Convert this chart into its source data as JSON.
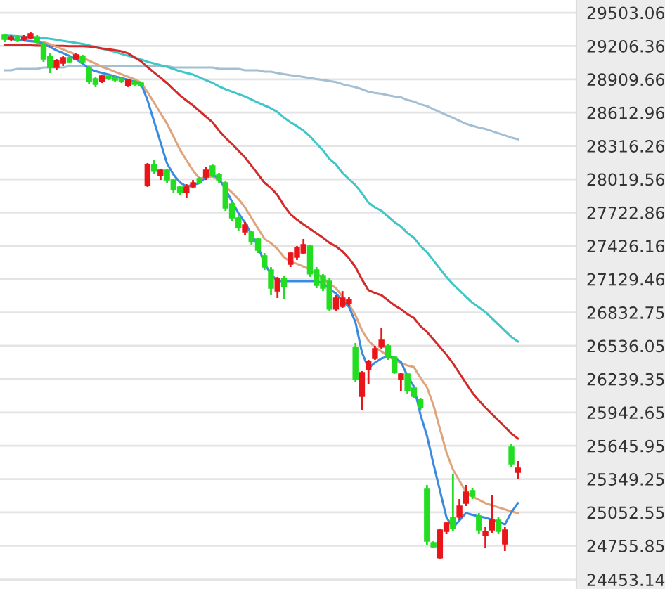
{
  "chart_data": {
    "type": "candlestick",
    "categories": [
      null,
      null,
      null,
      null,
      null,
      null,
      null,
      null,
      null,
      null,
      null,
      null,
      null,
      null,
      null,
      null,
      null,
      null,
      null,
      null,
      null,
      null,
      null,
      null,
      null,
      null,
      null,
      null,
      null,
      null,
      null,
      null,
      null,
      null,
      null,
      null,
      null,
      null,
      null,
      null,
      null,
      null,
      null,
      null,
      null,
      null,
      null,
      null,
      null,
      null,
      null,
      null,
      null,
      null,
      null,
      null,
      null,
      null,
      null,
      null,
      null,
      null,
      null,
      null,
      null,
      null,
      null,
      null,
      null,
      null,
      null,
      null,
      null,
      null,
      null,
      null,
      null,
      null,
      null,
      null
    ],
    "ohlc": [
      [
        29303,
        29316,
        29240,
        29265
      ],
      [
        29265,
        29303,
        29253,
        29290
      ],
      [
        29290,
        29303,
        29240,
        29253
      ],
      [
        29265,
        29303,
        29253,
        29290
      ],
      [
        29278,
        29328,
        29265,
        29316
      ],
      [
        29290,
        29303,
        29228,
        29240
      ],
      [
        29228,
        29240,
        29065,
        29090
      ],
      [
        29115,
        29140,
        28965,
        29015
      ],
      [
        29015,
        29090,
        28990,
        29078
      ],
      [
        29053,
        29115,
        29028,
        29103
      ],
      [
        29103,
        29115,
        29053,
        29065
      ],
      [
        29090,
        29140,
        29078,
        29128
      ],
      [
        29115,
        29128,
        29053,
        29065
      ],
      [
        29015,
        29028,
        28865,
        28890
      ],
      [
        28915,
        28927,
        28840,
        28865
      ],
      [
        28890,
        28952,
        28877,
        28940
      ],
      [
        28940,
        28952,
        28902,
        28915
      ],
      [
        28927,
        28940,
        28890,
        28902
      ],
      [
        28915,
        28927,
        28877,
        28890
      ],
      [
        28852,
        28915,
        28840,
        28902
      ],
      [
        28890,
        28902,
        28852,
        28865
      ],
      [
        28877,
        28890,
        28840,
        28852
      ],
      [
        27963,
        28164,
        27951,
        28151
      ],
      [
        28151,
        28189,
        28064,
        28089
      ],
      [
        28051,
        28114,
        28013,
        28101
      ],
      [
        28101,
        28114,
        27988,
        28013
      ],
      [
        28013,
        28026,
        27901,
        27926
      ],
      [
        27951,
        27963,
        27876,
        27901
      ],
      [
        27901,
        27976,
        27851,
        27951
      ],
      [
        27951,
        28013,
        27938,
        27988
      ],
      [
        28026,
        28038,
        27976,
        27988
      ],
      [
        28038,
        28126,
        28013,
        28101
      ],
      [
        28139,
        28151,
        28038,
        28051
      ],
      [
        28064,
        28076,
        27988,
        28013
      ],
      [
        27988,
        28001,
        27738,
        27763
      ],
      [
        27801,
        27813,
        27650,
        27675
      ],
      [
        27675,
        27700,
        27563,
        27588
      ],
      [
        27550,
        27638,
        27525,
        27613
      ],
      [
        27550,
        27563,
        27438,
        27463
      ],
      [
        27488,
        27500,
        27362,
        27387
      ],
      [
        27337,
        27362,
        27212,
        27237
      ],
      [
        27212,
        27237,
        26987,
        27049
      ],
      [
        27024,
        27150,
        26962,
        27137
      ],
      [
        27137,
        27162,
        26949,
        27062
      ],
      [
        27262,
        27375,
        27237,
        27362
      ],
      [
        27325,
        27425,
        27300,
        27412
      ],
      [
        27362,
        27488,
        27350,
        27438
      ],
      [
        27425,
        27438,
        27150,
        27175
      ],
      [
        27212,
        27237,
        27049,
        27074
      ],
      [
        27162,
        27175,
        27024,
        27049
      ],
      [
        27112,
        27137,
        26849,
        26862
      ],
      [
        26862,
        26987,
        26849,
        26962
      ],
      [
        26887,
        27024,
        26874,
        26962
      ],
      [
        26912,
        26974,
        26887,
        26949
      ],
      [
        26524,
        26561,
        26211,
        26236
      ],
      [
        26085,
        26311,
        25960,
        26298
      ],
      [
        26323,
        26411,
        26198,
        26398
      ],
      [
        26423,
        26536,
        26411,
        26511
      ],
      [
        26524,
        26699,
        26511,
        26586
      ],
      [
        26536,
        26549,
        26411,
        26436
      ],
      [
        26436,
        26448,
        26286,
        26298
      ],
      [
        26236,
        26298,
        26135,
        26286
      ],
      [
        26286,
        26298,
        26110,
        26135
      ],
      [
        26160,
        26173,
        26073,
        26085
      ],
      [
        26060,
        26073,
        25960,
        25985
      ],
      [
        25259,
        25297,
        24758,
        24796
      ],
      [
        24783,
        24796,
        24733,
        24746
      ],
      [
        24646,
        24909,
        24633,
        24896
      ],
      [
        24883,
        24971,
        24858,
        24959
      ],
      [
        25009,
        25397,
        24883,
        24909
      ],
      [
        25009,
        25171,
        24984,
        25109
      ],
      [
        25134,
        25297,
        25109,
        25234
      ],
      [
        25247,
        25272,
        25171,
        25196
      ],
      [
        25021,
        25046,
        24858,
        24896
      ],
      [
        24846,
        24921,
        24733,
        24883
      ],
      [
        24896,
        25209,
        24871,
        24984
      ],
      [
        24984,
        25009,
        24858,
        24883
      ],
      [
        24771,
        24921,
        24708,
        24896
      ],
      [
        25635,
        25660,
        25459,
        25484
      ],
      [
        25409,
        25509,
        25347,
        25447
      ]
    ],
    "colors": [
      "#22dd22",
      "#e8161a",
      "#22dd22",
      "#e8161a",
      "#e8161a",
      "#22dd22",
      "#22dd22",
      "#22dd22",
      "#e8161a",
      "#e8161a",
      "#22dd22",
      "#e8161a",
      "#22dd22",
      "#22dd22",
      "#22dd22",
      "#e8161a",
      "#22dd22",
      "#22dd22",
      "#22dd22",
      "#e8161a",
      "#22dd22",
      "#22dd22",
      "#e8161a",
      "#22dd22",
      "#e8161a",
      "#22dd22",
      "#22dd22",
      "#22dd22",
      "#e8161a",
      "#e8161a",
      "#22dd22",
      "#e8161a",
      "#22dd22",
      "#22dd22",
      "#22dd22",
      "#22dd22",
      "#22dd22",
      "#e8161a",
      "#22dd22",
      "#22dd22",
      "#22dd22",
      "#22dd22",
      "#e8161a",
      "#22dd22",
      "#e8161a",
      "#e8161a",
      "#e8161a",
      "#22dd22",
      "#22dd22",
      "#22dd22",
      "#22dd22",
      "#e8161a",
      "#e8161a",
      "#e8161a",
      "#22dd22",
      "#e8161a",
      "#e8161a",
      "#e8161a",
      "#e8161a",
      "#22dd22",
      "#22dd22",
      "#e8161a",
      "#22dd22",
      "#22dd22",
      "#22dd22",
      "#22dd22",
      "#22dd22",
      "#e8161a",
      "#e8161a",
      "#22dd22",
      "#e8161a",
      "#e8161a",
      "#22dd22",
      "#22dd22",
      "#e8161a",
      "#e8161a",
      "#22dd22",
      "#e8161a",
      "#22dd22",
      "#e8161a"
    ],
    "series": [
      {
        "type": "line",
        "color": "#a3bfd3",
        "values": [
          28990,
          28990,
          29003,
          29003,
          29003,
          29003,
          29015,
          29015,
          29015,
          29015,
          29028,
          29028,
          29028,
          29028,
          29028,
          29028,
          29028,
          29028,
          29028,
          29028,
          29028,
          29028,
          29028,
          29028,
          29028,
          29028,
          29015,
          29015,
          29015,
          29015,
          29015,
          29015,
          29015,
          29003,
          29003,
          29003,
          29003,
          28990,
          28990,
          28990,
          28977,
          28977,
          28965,
          28955,
          28946,
          28940,
          28930,
          28921,
          28912,
          28904,
          28894,
          28885,
          28867,
          28853,
          28840,
          28821,
          28798,
          28788,
          28780,
          28768,
          28757,
          28750,
          28725,
          28712,
          28687,
          28671,
          28644,
          28618,
          28592,
          28567,
          28540,
          28514,
          28495,
          28480,
          28467,
          28448,
          28429,
          28410,
          28390,
          28376
        ]
      },
      {
        "type": "line",
        "color": "#3ec6c9",
        "values": [
          29300,
          29297,
          29293,
          29289,
          29285,
          29282,
          29279,
          29270,
          29262,
          29252,
          29243,
          29234,
          29224,
          29213,
          29199,
          29183,
          29169,
          29154,
          29135,
          29119,
          29103,
          29086,
          29066,
          29051,
          29036,
          29021,
          29001,
          28982,
          28967,
          28952,
          28927,
          28902,
          28879,
          28847,
          28821,
          28800,
          28778,
          28757,
          28730,
          28703,
          28677,
          28652,
          28618,
          28568,
          28527,
          28493,
          28452,
          28402,
          28339,
          28276,
          28201,
          28151,
          28076,
          28020,
          27967,
          27894,
          27811,
          27769,
          27738,
          27688,
          27638,
          27598,
          27540,
          27498,
          27425,
          27370,
          27296,
          27222,
          27150,
          27085,
          27029,
          26974,
          26919,
          26878,
          26837,
          26781,
          26726,
          26670,
          26615,
          26574
        ]
      },
      {
        "type": "line",
        "color": "#d42a2a",
        "values": [
          29215,
          29214,
          29213,
          29212,
          29212,
          29210,
          29209,
          29208,
          29208,
          29207,
          29205,
          29204,
          29204,
          29202,
          29194,
          29184,
          29177,
          29168,
          29159,
          29141,
          29105,
          29070,
          29018,
          28970,
          28924,
          28876,
          28821,
          28766,
          28721,
          28677,
          28627,
          28577,
          28527,
          28452,
          28389,
          28334,
          28274,
          28214,
          28139,
          28064,
          27988,
          27941,
          27878,
          27784,
          27707,
          27659,
          27618,
          27578,
          27538,
          27498,
          27453,
          27422,
          27377,
          27315,
          27237,
          27127,
          27031,
          27006,
          26987,
          26942,
          26897,
          26863,
          26818,
          26784,
          26711,
          26660,
          26592,
          26525,
          26457,
          26380,
          26292,
          26204,
          26117,
          26050,
          25985,
          25928,
          25871,
          25814,
          25754,
          25710
        ]
      },
      {
        "type": "line",
        "color": "#e0a47c",
        "values": [
          29274,
          29269,
          29263,
          29258,
          29252,
          29247,
          29242,
          29222,
          29199,
          29175,
          29153,
          29129,
          29105,
          29075,
          29050,
          29020,
          29000,
          28977,
          28955,
          28932,
          28910,
          28881,
          28795,
          28702,
          28608,
          28515,
          28399,
          28282,
          28189,
          28096,
          28028,
          28036,
          28045,
          28013,
          27951,
          27901,
          27844,
          27769,
          27675,
          27581,
          27488,
          27450,
          27400,
          27325,
          27285,
          27266,
          27241,
          27217,
          27180,
          27140,
          27091,
          27049,
          26974,
          26905,
          26809,
          26674,
          26582,
          26524,
          26486,
          26446,
          26406,
          26381,
          26361,
          26346,
          26251,
          26167,
          26007,
          25797,
          25588,
          25434,
          25334,
          25234,
          25194,
          25164,
          25134,
          25115,
          25097,
          25079,
          25060,
          25046
        ]
      },
      {
        "type": "line",
        "color": "#3a8be0",
        "values": [
          29274,
          29268,
          29262,
          29255,
          29249,
          29243,
          29228,
          29197,
          29168,
          29143,
          29118,
          29088,
          29050,
          29005,
          28982,
          28966,
          28952,
          28936,
          28921,
          28905,
          28889,
          28872,
          28723,
          28536,
          28348,
          28160,
          28060,
          27991,
          27955,
          27970,
          27985,
          28041,
          28064,
          28026,
          27931,
          27821,
          27717,
          27634,
          27529,
          27425,
          27268,
          27175,
          27112,
          27112,
          27112,
          27112,
          27112,
          27112,
          27112,
          27094,
          27042,
          27003,
          26937,
          26883,
          26746,
          26476,
          26336,
          26386,
          26423,
          26442,
          26430,
          26392,
          26267,
          26173,
          25923,
          25735,
          25484,
          25246,
          25009,
          24916,
          24981,
          25046,
          25030,
          25017,
          25005,
          24987,
          24967,
          24946,
          25054,
          25134
        ]
      }
    ],
    "ylim": [
      24370,
      29616
    ],
    "yticks": [
      24453.14,
      24755.85,
      25052.55,
      25349.25,
      25645.95,
      25942.65,
      26239.35,
      26536.05,
      26832.75,
      27129.46,
      27426.16,
      27722.86,
      28019.56,
      28316.26,
      28612.96,
      28909.66,
      29206.36,
      29503.06
    ],
    "grid": "y"
  }
}
